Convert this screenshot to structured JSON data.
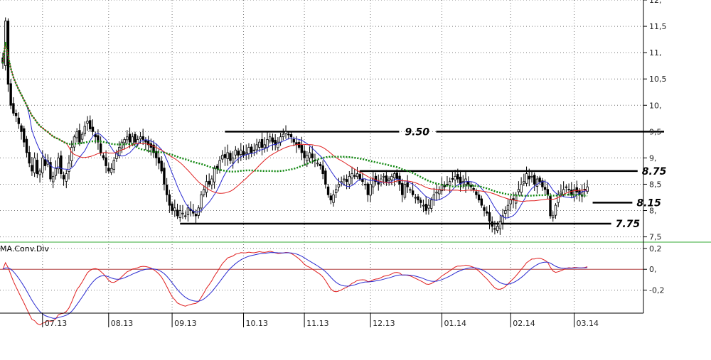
{
  "chart_data": {
    "type": "candlestick",
    "price_axis": {
      "ylim": [
        7.4,
        12.0
      ],
      "tick_labels": [
        "12,",
        "11,5",
        "11,",
        "10,5",
        "10,",
        "9,5",
        "9,",
        "8,5",
        "8,",
        "7,5"
      ],
      "tick_values": [
        12,
        11.5,
        11,
        10.5,
        10,
        9.5,
        9,
        8.5,
        8,
        7.5
      ]
    },
    "indicator_axis": {
      "ylim": [
        -0.42,
        0.26
      ],
      "tick_labels": [
        "0,2",
        "0,",
        "-0,2"
      ],
      "tick_values": [
        0.2,
        0,
        -0.2
      ]
    },
    "x_tick_labels": [
      "07.13",
      "08.13",
      "09.13",
      "10.13",
      "11.13",
      "12.13",
      "01.14",
      "02.14",
      "03.14"
    ],
    "x_tick_index": [
      15,
      40,
      64,
      91,
      114,
      139,
      166,
      192,
      216
    ],
    "indicator_title": "MA.Conv.Div",
    "level_lines": [
      {
        "label": "9.50",
        "value": 9.5,
        "start": 84,
        "end": 250
      },
      {
        "label": "8.75",
        "value": 8.75,
        "start": 135,
        "end": 240
      },
      {
        "label": "8.15",
        "value": 8.15,
        "start": 223,
        "end": 238
      },
      {
        "label": "7.75",
        "value": 7.75,
        "start": 67,
        "end": 230
      }
    ],
    "closes": [
      10.8,
      11.6,
      10.4,
      10.0,
      9.85,
      9.8,
      9.65,
      9.5,
      9.3,
      9.1,
      8.9,
      8.75,
      9.0,
      8.7,
      8.75,
      9.0,
      8.85,
      8.95,
      8.6,
      8.65,
      8.8,
      9.0,
      8.7,
      8.6,
      8.7,
      8.9,
      9.2,
      9.4,
      9.5,
      9.3,
      9.45,
      9.6,
      9.7,
      9.55,
      9.5,
      9.4,
      9.3,
      9.1,
      9.0,
      8.85,
      8.75,
      8.8,
      8.95,
      9.1,
      9.2,
      9.3,
      9.35,
      9.4,
      9.3,
      9.4,
      9.3,
      9.35,
      9.4,
      9.35,
      9.3,
      9.25,
      9.2,
      9.1,
      9.0,
      8.9,
      8.75,
      8.5,
      8.3,
      8.1,
      8.0,
      8.05,
      7.9,
      8.0,
      7.95,
      7.9,
      8.05,
      8.0,
      7.95,
      7.9,
      8.05,
      8.3,
      8.4,
      8.55,
      8.5,
      8.6,
      8.8,
      8.8,
      8.95,
      9.05,
      9.0,
      9.1,
      8.95,
      9.0,
      9.15,
      9.05,
      9.15,
      9.05,
      9.1,
      9.2,
      9.1,
      9.15,
      9.25,
      9.3,
      9.2,
      9.25,
      9.35,
      9.4,
      9.3,
      9.25,
      9.3,
      9.4,
      9.45,
      9.5,
      9.45,
      9.4,
      9.3,
      9.25,
      9.2,
      9.1,
      9.0,
      9.05,
      9.1,
      9.0,
      8.95,
      8.9,
      8.85,
      8.7,
      8.5,
      8.3,
      8.2,
      8.3,
      8.4,
      8.5,
      8.55,
      8.6,
      8.55,
      8.65,
      8.7,
      8.65,
      8.7,
      8.6,
      8.55,
      8.5,
      8.3,
      8.5,
      8.6,
      8.55,
      8.5,
      8.6,
      8.65,
      8.55,
      8.6,
      8.65,
      8.7,
      8.6,
      8.5,
      8.3,
      8.5,
      8.45,
      8.4,
      8.3,
      8.25,
      8.2,
      8.15,
      8.1,
      8.0,
      8.1,
      8.2,
      8.3,
      8.35,
      8.4,
      8.5,
      8.45,
      8.5,
      8.55,
      8.6,
      8.65,
      8.6,
      8.5,
      8.55,
      8.6,
      8.5,
      8.45,
      8.4,
      8.3,
      8.2,
      8.1,
      8.0,
      7.95,
      7.8,
      7.7,
      7.65,
      7.7,
      7.8,
      7.9,
      8.0,
      8.1,
      8.2,
      8.2,
      8.3,
      8.4,
      8.5,
      8.55,
      8.7,
      8.6,
      8.65,
      8.5,
      8.6,
      8.55,
      8.45,
      8.4,
      8.3,
      7.9,
      7.9,
      8.1,
      8.3,
      8.35,
      8.4,
      8.45,
      8.4,
      8.3,
      8.4,
      8.35,
      8.3,
      8.35,
      8.4,
      8.45
    ]
  }
}
